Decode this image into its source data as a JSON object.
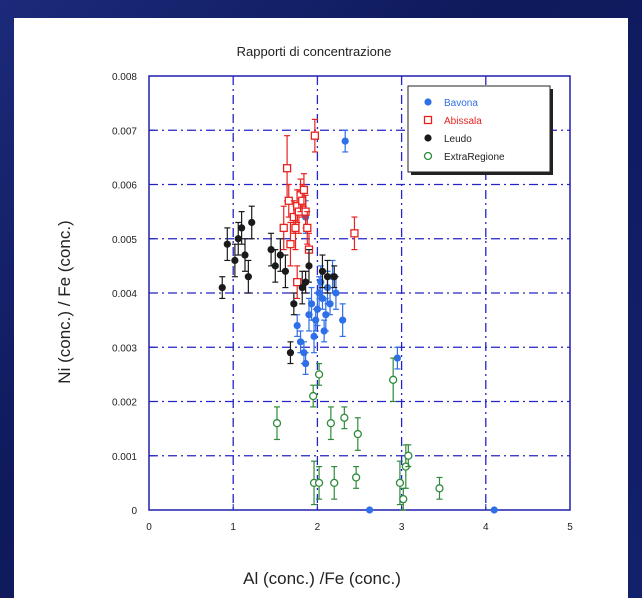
{
  "chart_data": {
    "type": "scatter",
    "title": "Rapporti di concentrazione",
    "xlabel": "Al (conc.) /Fe (conc.)",
    "ylabel": "Ni (conc.) / Fe (conc.)",
    "xlim": [
      0,
      5
    ],
    "ylim": [
      0,
      0.008
    ],
    "x_ticks": [
      "0",
      "1",
      "2",
      "3",
      "4",
      "5"
    ],
    "y_ticks": [
      "0",
      "0.001",
      "0.002",
      "0.003",
      "0.004",
      "0.005",
      "0.006",
      "0.007",
      "0.008"
    ],
    "grid": true,
    "legend_position": "top-right",
    "series": [
      {
        "name": "Bavona",
        "color": "#2f6fe8",
        "marker": "filled-circle",
        "points": [
          [
            1.76,
            0.0034,
            0.0002
          ],
          [
            1.8,
            0.0031,
            0.0002
          ],
          [
            1.84,
            0.0029,
            0.0002
          ],
          [
            1.86,
            0.0027,
            0.0002
          ],
          [
            1.9,
            0.0036,
            0.0003
          ],
          [
            1.93,
            0.0038,
            0.0003
          ],
          [
            1.96,
            0.0032,
            0.0003
          ],
          [
            1.98,
            0.0035,
            0.0002
          ],
          [
            2.0,
            0.0037,
            0.0003
          ],
          [
            2.02,
            0.004,
            0.0003
          ],
          [
            2.04,
            0.0042,
            0.0003
          ],
          [
            2.06,
            0.0039,
            0.0002
          ],
          [
            2.08,
            0.0033,
            0.0002
          ],
          [
            2.1,
            0.0036,
            0.0003
          ],
          [
            2.12,
            0.0041,
            0.0003
          ],
          [
            2.15,
            0.0038,
            0.0002
          ],
          [
            2.18,
            0.0043,
            0.0003
          ],
          [
            2.22,
            0.004,
            0.0003
          ],
          [
            2.3,
            0.0035,
            0.0003
          ],
          [
            1.86,
            0.0054,
            0.0003
          ],
          [
            2.33,
            0.0068,
            0.0002
          ],
          [
            2.95,
            0.0028,
            0.0002
          ],
          [
            2.62,
            0.0,
            0.0
          ],
          [
            4.1,
            0.0,
            0.0
          ]
        ]
      },
      {
        "name": "Abissala",
        "color": "#e8231f",
        "marker": "open-square",
        "points": [
          [
            1.6,
            0.0052,
            0.0004
          ],
          [
            1.64,
            0.0063,
            0.0006
          ],
          [
            1.66,
            0.0057,
            0.0003
          ],
          [
            1.68,
            0.0049,
            0.0004
          ],
          [
            1.72,
            0.0054,
            0.0003
          ],
          [
            1.74,
            0.0052,
            0.0004
          ],
          [
            1.76,
            0.0056,
            0.0003
          ],
          [
            1.78,
            0.0055,
            0.0004
          ],
          [
            1.8,
            0.0058,
            0.0003
          ],
          [
            1.82,
            0.0057,
            0.0003
          ],
          [
            1.84,
            0.0059,
            0.0003
          ],
          [
            1.86,
            0.0055,
            0.0003
          ],
          [
            1.88,
            0.0052,
            0.0003
          ],
          [
            1.9,
            0.0048,
            0.0003
          ],
          [
            1.76,
            0.0042,
            0.0003
          ],
          [
            1.97,
            0.0069,
            0.0003
          ],
          [
            2.44,
            0.0051,
            0.0003
          ]
        ]
      },
      {
        "name": "Leudo",
        "color": "#1a1a1a",
        "marker": "filled-circle",
        "points": [
          [
            0.87,
            0.0041,
            0.0002
          ],
          [
            0.93,
            0.0049,
            0.0003
          ],
          [
            1.02,
            0.0046,
            0.0003
          ],
          [
            1.06,
            0.005,
            0.0003
          ],
          [
            1.1,
            0.0052,
            0.0003
          ],
          [
            1.14,
            0.0047,
            0.0003
          ],
          [
            1.18,
            0.0043,
            0.0003
          ],
          [
            1.22,
            0.0053,
            0.0003
          ],
          [
            1.45,
            0.0048,
            0.0003
          ],
          [
            1.5,
            0.0045,
            0.0003
          ],
          [
            1.56,
            0.0047,
            0.0003
          ],
          [
            1.62,
            0.0044,
            0.0003
          ],
          [
            1.68,
            0.0029,
            0.0002
          ],
          [
            1.72,
            0.0038,
            0.0002
          ],
          [
            1.82,
            0.0041,
            0.0003
          ],
          [
            1.86,
            0.0042,
            0.0002
          ],
          [
            1.9,
            0.0045,
            0.0003
          ],
          [
            2.06,
            0.0044,
            0.0003
          ],
          [
            2.12,
            0.0043,
            0.0003
          ],
          [
            2.2,
            0.0043,
            0.0002
          ]
        ]
      },
      {
        "name": "ExtraRegione",
        "color": "#2e8b3a",
        "marker": "open-circle",
        "points": [
          [
            1.52,
            0.0016,
            0.0003
          ],
          [
            1.95,
            0.0021,
            0.0002
          ],
          [
            2.02,
            0.0025,
            0.0002
          ],
          [
            1.96,
            0.0005,
            0.0004
          ],
          [
            2.02,
            0.0005,
            0.0003
          ],
          [
            2.16,
            0.0016,
            0.0003
          ],
          [
            2.2,
            0.0005,
            0.0003
          ],
          [
            2.32,
            0.0017,
            0.0002
          ],
          [
            2.48,
            0.0014,
            0.0003
          ],
          [
            2.46,
            0.0006,
            0.0002
          ],
          [
            2.9,
            0.0024,
            0.0004
          ],
          [
            2.98,
            0.0005,
            0.0004
          ],
          [
            3.02,
            0.0002,
            0.0002
          ],
          [
            3.05,
            0.0008,
            0.0004
          ],
          [
            3.08,
            0.001,
            0.0002
          ],
          [
            3.45,
            0.0004,
            0.0002
          ]
        ]
      }
    ]
  }
}
